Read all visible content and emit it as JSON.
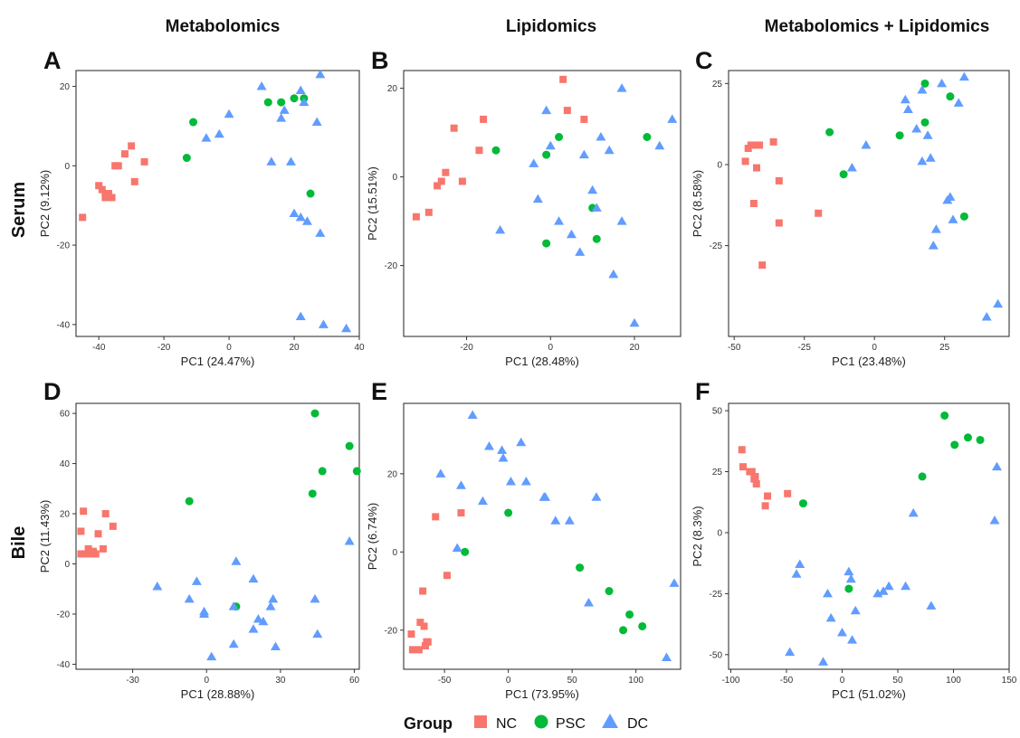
{
  "column_titles": [
    "Metabolomics",
    "Lipidomics",
    "Metabolomics + Lipidomics"
  ],
  "row_titles": [
    "Serum",
    "Bile"
  ],
  "legend": {
    "title": "Group",
    "items": [
      {
        "label": "NC",
        "shape": "square",
        "color": "#F8766D"
      },
      {
        "label": "PSC",
        "shape": "circle",
        "color": "#00BA38"
      },
      {
        "label": "DC",
        "shape": "triangle",
        "color": "#619CFF"
      }
    ]
  },
  "chart_data": [
    {
      "panel": "A",
      "type": "scatter",
      "xlabel": "PC1 (24.47%)",
      "ylabel": "PC2 (9.12%)",
      "xlim": [
        -47,
        40
      ],
      "ylim": [
        -43,
        24
      ],
      "xticks": [
        -40,
        -20,
        0,
        20,
        40
      ],
      "yticks": [
        -40,
        -20,
        0,
        20
      ],
      "series": [
        {
          "name": "NC",
          "points": [
            [
              -45,
              -13
            ],
            [
              -40,
              -5
            ],
            [
              -39,
              -6
            ],
            [
              -38,
              -7
            ],
            [
              -38,
              -8
            ],
            [
              -37,
              -7
            ],
            [
              -36,
              -8
            ],
            [
              -35,
              0
            ],
            [
              -34,
              0
            ],
            [
              -32,
              3
            ],
            [
              -30,
              5
            ],
            [
              -29,
              -4
            ],
            [
              -26,
              1
            ]
          ]
        },
        {
          "name": "PSC",
          "points": [
            [
              -13,
              2
            ],
            [
              -11,
              11
            ],
            [
              12,
              16
            ],
            [
              16,
              16
            ],
            [
              20,
              17
            ],
            [
              23,
              17
            ],
            [
              25,
              -7
            ]
          ]
        },
        {
          "name": "DC",
          "points": [
            [
              -7,
              7
            ],
            [
              -3,
              8
            ],
            [
              0,
              13
            ],
            [
              10,
              20
            ],
            [
              13,
              1
            ],
            [
              16,
              12
            ],
            [
              17,
              14
            ],
            [
              19,
              1
            ],
            [
              20,
              -12
            ],
            [
              22,
              -13
            ],
            [
              22,
              19
            ],
            [
              23,
              16
            ],
            [
              24,
              -14
            ],
            [
              28,
              -17
            ],
            [
              27,
              11
            ],
            [
              28,
              23
            ],
            [
              22,
              -38
            ],
            [
              29,
              -40
            ],
            [
              36,
              -41
            ]
          ]
        }
      ]
    },
    {
      "panel": "B",
      "type": "scatter",
      "xlabel": "PC1 (28.48%)",
      "ylabel": "PC2 (15.51%)",
      "xlim": [
        -35,
        31
      ],
      "ylim": [
        -36,
        24
      ],
      "xticks": [
        -20,
        0,
        20
      ],
      "yticks": [
        -20,
        0,
        20
      ],
      "series": [
        {
          "name": "NC",
          "points": [
            [
              -32,
              -9
            ],
            [
              -29,
              -8
            ],
            [
              -27,
              -2
            ],
            [
              -26,
              -1
            ],
            [
              -25,
              1
            ],
            [
              -23,
              11
            ],
            [
              -21,
              -1
            ],
            [
              -17,
              6
            ],
            [
              -16,
              13
            ],
            [
              3,
              22
            ],
            [
              4,
              15
            ],
            [
              8,
              13
            ]
          ]
        },
        {
          "name": "PSC",
          "points": [
            [
              -13,
              6
            ],
            [
              -1,
              5
            ],
            [
              -1,
              -15
            ],
            [
              2,
              9
            ],
            [
              10,
              -7
            ],
            [
              11,
              -14
            ],
            [
              23,
              9
            ]
          ]
        },
        {
          "name": "DC",
          "points": [
            [
              -12,
              -12
            ],
            [
              -4,
              3
            ],
            [
              -3,
              -5
            ],
            [
              -1,
              15
            ],
            [
              0,
              7
            ],
            [
              2,
              -10
            ],
            [
              5,
              -13
            ],
            [
              7,
              -17
            ],
            [
              8,
              5
            ],
            [
              10,
              -3
            ],
            [
              11,
              -7
            ],
            [
              12,
              9
            ],
            [
              14,
              6
            ],
            [
              15,
              -22
            ],
            [
              17,
              -10
            ],
            [
              17,
              20
            ],
            [
              20,
              -33
            ],
            [
              26,
              7
            ],
            [
              29,
              13
            ]
          ]
        }
      ]
    },
    {
      "panel": "C",
      "type": "scatter",
      "xlabel": "PC1 (23.48%)",
      "ylabel": "PC2 (8.58%)",
      "xlim": [
        -52,
        48
      ],
      "ylim": [
        -53,
        29
      ],
      "xticks": [
        -50,
        -25,
        0,
        25
      ],
      "yticks": [
        -25,
        0,
        25
      ],
      "series": [
        {
          "name": "NC",
          "points": [
            [
              -46,
              1
            ],
            [
              -45,
              5
            ],
            [
              -44,
              6
            ],
            [
              -43,
              6
            ],
            [
              -43,
              -12
            ],
            [
              -42,
              -1
            ],
            [
              -41,
              6
            ],
            [
              -40,
              -31
            ],
            [
              -36,
              7
            ],
            [
              -34,
              -18
            ],
            [
              -34,
              -5
            ],
            [
              -20,
              -15
            ]
          ]
        },
        {
          "name": "PSC",
          "points": [
            [
              -16,
              10
            ],
            [
              -11,
              -3
            ],
            [
              9,
              9
            ],
            [
              18,
              25
            ],
            [
              18,
              13
            ],
            [
              27,
              21
            ],
            [
              32,
              -16
            ]
          ]
        },
        {
          "name": "DC",
          "points": [
            [
              -8,
              -1
            ],
            [
              -3,
              6
            ],
            [
              11,
              20
            ],
            [
              12,
              17
            ],
            [
              15,
              11
            ],
            [
              17,
              23
            ],
            [
              17,
              1
            ],
            [
              19,
              9
            ],
            [
              20,
              2
            ],
            [
              21,
              -25
            ],
            [
              22,
              -20
            ],
            [
              24,
              25
            ],
            [
              26,
              -11
            ],
            [
              27,
              -10
            ],
            [
              28,
              -17
            ],
            [
              30,
              19
            ],
            [
              32,
              27
            ],
            [
              40,
              -47
            ],
            [
              44,
              -43
            ]
          ]
        }
      ]
    },
    {
      "panel": "D",
      "type": "scatter",
      "xlabel": "PC1 (28.88%)",
      "ylabel": "PC2 (11.43%)",
      "xlim": [
        -53,
        62
      ],
      "ylim": [
        -42,
        64
      ],
      "xticks": [
        -30,
        0,
        30,
        60
      ],
      "yticks": [
        -40,
        -20,
        0,
        20,
        40,
        60
      ],
      "series": [
        {
          "name": "NC",
          "points": [
            [
              -51,
              13
            ],
            [
              -51,
              4
            ],
            [
              -50,
              21
            ],
            [
              -49,
              4
            ],
            [
              -48,
              6
            ],
            [
              -47,
              4
            ],
            [
              -46,
              5
            ],
            [
              -45,
              4
            ],
            [
              -44,
              12
            ],
            [
              -42,
              6
            ],
            [
              -41,
              20
            ],
            [
              -38,
              15
            ]
          ]
        },
        {
          "name": "PSC",
          "points": [
            [
              -7,
              25
            ],
            [
              12,
              -17
            ],
            [
              43,
              28
            ],
            [
              44,
              60
            ],
            [
              47,
              37
            ],
            [
              58,
              47
            ],
            [
              61,
              37
            ]
          ]
        },
        {
          "name": "DC",
          "points": [
            [
              -20,
              -9
            ],
            [
              -7,
              -14
            ],
            [
              -4,
              -7
            ],
            [
              -1,
              -19
            ],
            [
              -1,
              -20
            ],
            [
              2,
              -37
            ],
            [
              11,
              -17
            ],
            [
              11,
              -32
            ],
            [
              12,
              1
            ],
            [
              19,
              -6
            ],
            [
              19,
              -26
            ],
            [
              21,
              -22
            ],
            [
              23,
              -23
            ],
            [
              26,
              -17
            ],
            [
              27,
              -14
            ],
            [
              28,
              -33
            ],
            [
              44,
              -14
            ],
            [
              45,
              -28
            ],
            [
              58,
              9
            ]
          ]
        }
      ]
    },
    {
      "panel": "E",
      "type": "scatter",
      "xlabel": "PC1 (73.95%)",
      "ylabel": "PC2 (6.74%)",
      "xlim": [
        -82,
        135
      ],
      "ylim": [
        -30,
        38
      ],
      "xticks": [
        -50,
        0,
        50,
        100
      ],
      "yticks": [
        -20,
        0,
        20
      ],
      "series": [
        {
          "name": "NC",
          "points": [
            [
              -76,
              -21
            ],
            [
              -75,
              -25
            ],
            [
              -70,
              -25
            ],
            [
              -69,
              -18
            ],
            [
              -67,
              -10
            ],
            [
              -66,
              -19
            ],
            [
              -65,
              -24
            ],
            [
              -64,
              -23
            ],
            [
              -63,
              -23
            ],
            [
              -57,
              9
            ],
            [
              -48,
              -6
            ],
            [
              -37,
              10
            ]
          ]
        },
        {
          "name": "PSC",
          "points": [
            [
              -34,
              0
            ],
            [
              0,
              10
            ],
            [
              56,
              -4
            ],
            [
              79,
              -10
            ],
            [
              90,
              -20
            ],
            [
              95,
              -16
            ],
            [
              105,
              -19
            ]
          ]
        },
        {
          "name": "DC",
          "points": [
            [
              -53,
              20
            ],
            [
              -40,
              1
            ],
            [
              -37,
              17
            ],
            [
              -28,
              35
            ],
            [
              -20,
              13
            ],
            [
              -15,
              27
            ],
            [
              -5,
              26
            ],
            [
              -4,
              24
            ],
            [
              2,
              18
            ],
            [
              10,
              28
            ],
            [
              14,
              18
            ],
            [
              28,
              14
            ],
            [
              29,
              14
            ],
            [
              37,
              8
            ],
            [
              48,
              8
            ],
            [
              63,
              -13
            ],
            [
              69,
              14
            ],
            [
              124,
              -27
            ],
            [
              130,
              -8
            ]
          ]
        }
      ]
    },
    {
      "panel": "F",
      "type": "scatter",
      "xlabel": "PC1 (51.02%)",
      "ylabel": "PC2 (8.3%)",
      "xlim": [
        -102,
        150
      ],
      "ylim": [
        -56,
        53
      ],
      "xticks": [
        -100,
        -50,
        0,
        50,
        100,
        150
      ],
      "yticks": [
        -50,
        -25,
        0,
        25,
        50
      ],
      "series": [
        {
          "name": "NC",
          "points": [
            [
              -90,
              34
            ],
            [
              -89,
              27
            ],
            [
              -83,
              25
            ],
            [
              -81,
              25
            ],
            [
              -79,
              22
            ],
            [
              -78,
              23
            ],
            [
              -77,
              20
            ],
            [
              -69,
              11
            ],
            [
              -67,
              15
            ],
            [
              -49,
              16
            ]
          ]
        },
        {
          "name": "PSC",
          "points": [
            [
              -35,
              12
            ],
            [
              6,
              -23
            ],
            [
              72,
              23
            ],
            [
              92,
              48
            ],
            [
              101,
              36
            ],
            [
              113,
              39
            ],
            [
              124,
              38
            ]
          ]
        },
        {
          "name": "DC",
          "points": [
            [
              -47,
              -49
            ],
            [
              -41,
              -17
            ],
            [
              -38,
              -13
            ],
            [
              -17,
              -53
            ],
            [
              -13,
              -25
            ],
            [
              -10,
              -35
            ],
            [
              0,
              -41
            ],
            [
              6,
              -16
            ],
            [
              8,
              -19
            ],
            [
              9,
              -44
            ],
            [
              12,
              -32
            ],
            [
              32,
              -25
            ],
            [
              37,
              -24
            ],
            [
              42,
              -22
            ],
            [
              57,
              -22
            ],
            [
              64,
              8
            ],
            [
              80,
              -30
            ],
            [
              137,
              5
            ],
            [
              139,
              27
            ]
          ]
        }
      ]
    }
  ]
}
